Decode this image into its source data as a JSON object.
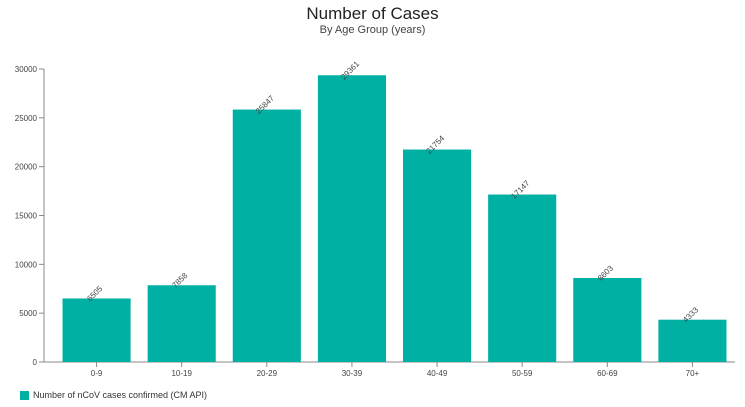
{
  "chart_data": {
    "type": "bar",
    "title": "Number of Cases",
    "subtitle": "By Age Group (years)",
    "xlabel": "",
    "ylabel": "",
    "categories": [
      "0-9",
      "10-19",
      "20-29",
      "30-39",
      "40-49",
      "50-59",
      "60-69",
      "70+"
    ],
    "series": [
      {
        "name": "Number of nCoV cases confirmed (CM API)",
        "color": "#00b0a3",
        "values": [
          6505,
          7858,
          25847,
          29361,
          21754,
          17147,
          8603,
          4333
        ]
      }
    ],
    "yticks": [
      0,
      5000,
      10000,
      15000,
      20000,
      25000,
      30000
    ],
    "ylim": [
      0,
      30000
    ],
    "grid": false,
    "legend_position": "bottom-left",
    "data_labels": "rotated"
  }
}
